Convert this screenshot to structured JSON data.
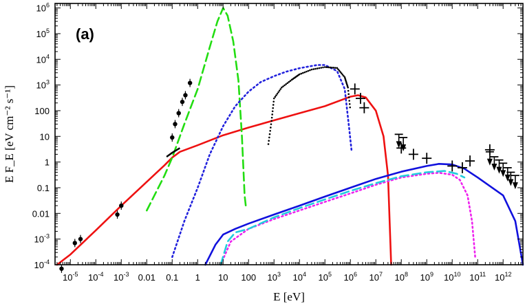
{
  "chart_data": {
    "type": "line",
    "title": "",
    "panel_label": "(a)",
    "xlabel": "E [eV]",
    "ylabel": "E F_E [eV cm⁻² s⁻¹]",
    "xscale": "log",
    "yscale": "log",
    "xlim": [
      2.5e-06,
      6000000000000.0
    ],
    "ylim": [
      0.0001,
      1500000.0
    ],
    "x_ticks": [
      {
        "v": 1e-05,
        "b": "10",
        "e": "-5"
      },
      {
        "v": 0.0001,
        "b": "10",
        "e": "-4"
      },
      {
        "v": 0.001,
        "b": "10",
        "e": "-3"
      },
      {
        "v": 0.01,
        "b": "0.01",
        "e": ""
      },
      {
        "v": 0.1,
        "b": "0.1",
        "e": ""
      },
      {
        "v": 1,
        "b": "1",
        "e": ""
      },
      {
        "v": 10,
        "b": "10",
        "e": ""
      },
      {
        "v": 100,
        "b": "100",
        "e": ""
      },
      {
        "v": 1000.0,
        "b": "10",
        "e": "3"
      },
      {
        "v": 10000.0,
        "b": "10",
        "e": "4"
      },
      {
        "v": 100000.0,
        "b": "10",
        "e": "5"
      },
      {
        "v": 1000000.0,
        "b": "10",
        "e": "6"
      },
      {
        "v": 10000000.0,
        "b": "10",
        "e": "7"
      },
      {
        "v": 100000000.0,
        "b": "10",
        "e": "8"
      },
      {
        "v": 1000000000.0,
        "b": "10",
        "e": "9"
      },
      {
        "v": 10000000000.0,
        "b": "10",
        "e": "10"
      },
      {
        "v": 100000000000.0,
        "b": "10",
        "e": "11"
      },
      {
        "v": 1000000000000.0,
        "b": "10",
        "e": "12"
      }
    ],
    "y_ticks": [
      {
        "v": 0.0001,
        "b": "10",
        "e": "-4"
      },
      {
        "v": 0.001,
        "b": "10",
        "e": "-3"
      },
      {
        "v": 0.01,
        "b": "0.01",
        "e": ""
      },
      {
        "v": 0.1,
        "b": "0.1",
        "e": ""
      },
      {
        "v": 1,
        "b": "1",
        "e": ""
      },
      {
        "v": 10,
        "b": "10",
        "e": ""
      },
      {
        "v": 100,
        "b": "100",
        "e": ""
      },
      {
        "v": 1000.0,
        "b": "10",
        "e": "3"
      },
      {
        "v": 10000.0,
        "b": "10",
        "e": "4"
      },
      {
        "v": 100000.0,
        "b": "10",
        "e": "5"
      },
      {
        "v": 1000000.0,
        "b": "10",
        "e": "6"
      }
    ],
    "series": [
      {
        "key": "red-solid",
        "color": "#ee1111",
        "style": "solid",
        "points": [
          [
            3e-06,
            6e-05
          ],
          [
            1e-05,
            0.00025
          ],
          [
            0.0001,
            0.0022
          ],
          [
            0.001,
            0.02
          ],
          [
            0.01,
            0.17
          ],
          [
            0.05,
            0.75
          ],
          [
            0.1,
            1.5
          ],
          [
            0.2,
            2.5
          ],
          [
            1,
            4.5
          ],
          [
            10,
            11
          ],
          [
            100,
            22
          ],
          [
            1000.0,
            42
          ],
          [
            10000.0,
            80
          ],
          [
            100000.0,
            150
          ],
          [
            1000000.0,
            350
          ],
          [
            2000000.0,
            400
          ],
          [
            4000000.0,
            330
          ],
          [
            10000000.0,
            100
          ],
          [
            20000000.0,
            10
          ],
          [
            30000000.0,
            0.3
          ],
          [
            40000000.0,
            0.0001
          ]
        ]
      },
      {
        "key": "green-dashed",
        "color": "#22dd11",
        "style": "dashed",
        "points": [
          [
            0.01,
            0.013
          ],
          [
            0.05,
            0.3
          ],
          [
            0.1,
            1.5
          ],
          [
            0.3,
            30
          ],
          [
            1,
            700
          ],
          [
            3,
            30000.0
          ],
          [
            6,
            300000.0
          ],
          [
            10,
            1000000.0
          ],
          [
            15,
            500000.0
          ],
          [
            25,
            50000.0
          ],
          [
            40,
            1500
          ],
          [
            55,
            10
          ],
          [
            70,
            0.05
          ],
          [
            80,
            0.015
          ]
        ]
      },
      {
        "key": "blue-dotted",
        "color": "#2222dd",
        "style": "dotted",
        "points": [
          [
            0.1,
            0.0002
          ],
          [
            0.3,
            0.005
          ],
          [
            1,
            0.1
          ],
          [
            3,
            2
          ],
          [
            10,
            25
          ],
          [
            30,
            150
          ],
          [
            100,
            550
          ],
          [
            300,
            1300
          ],
          [
            1000.0,
            2200
          ],
          [
            3000.0,
            3300
          ],
          [
            10000.0,
            4500
          ],
          [
            50000.0,
            6000
          ],
          [
            100000.0,
            6000
          ],
          [
            300000.0,
            3500
          ],
          [
            600000.0,
            700
          ],
          [
            900000.0,
            20
          ],
          [
            1100000.0,
            3
          ]
        ]
      },
      {
        "key": "blue-solid",
        "color": "#1111dd",
        "style": "solid",
        "points": [
          [
            2,
            0.0001
          ],
          [
            5,
            0.0006
          ],
          [
            10,
            0.0015
          ],
          [
            30,
            0.0025
          ],
          [
            100,
            0.004
          ],
          [
            1000.0,
            0.009
          ],
          [
            10000.0,
            0.02
          ],
          [
            100000.0,
            0.045
          ],
          [
            1000000.0,
            0.1
          ],
          [
            10000000.0,
            0.22
          ],
          [
            100000000.0,
            0.42
          ],
          [
            1000000000.0,
            0.7
          ],
          [
            3000000000.0,
            0.85
          ],
          [
            10000000000.0,
            0.8
          ],
          [
            30000000000.0,
            0.55
          ],
          [
            100000000000.0,
            0.25
          ],
          [
            1000000000000.0,
            0.05
          ],
          [
            3000000000000.0,
            0.005
          ],
          [
            6000000000000.0,
            0.0001
          ]
        ]
      },
      {
        "key": "magenta-dotted",
        "color": "#ee22ee",
        "style": "dotted",
        "points": [
          [
            8,
            0.0001
          ],
          [
            20,
            0.0008
          ],
          [
            100,
            0.0025
          ],
          [
            1000.0,
            0.006
          ],
          [
            10000.0,
            0.013
          ],
          [
            100000.0,
            0.028
          ],
          [
            1000000.0,
            0.06
          ],
          [
            10000000.0,
            0.13
          ],
          [
            100000000.0,
            0.25
          ],
          [
            1000000000.0,
            0.35
          ],
          [
            3000000000.0,
            0.38
          ],
          [
            10000000000.0,
            0.32
          ],
          [
            20000000000.0,
            0.2
          ],
          [
            40000000000.0,
            0.05
          ],
          [
            60000000000.0,
            0.005
          ],
          [
            80000000000.0,
            0.0002
          ]
        ]
      },
      {
        "key": "cyan-dashed",
        "color": "#22ccdd",
        "style": "dashed",
        "points": [
          [
            8,
            0.0001
          ],
          [
            15,
            0.0008
          ],
          [
            30,
            0.0018
          ],
          [
            100,
            0.0025
          ],
          [
            1000.0,
            0.007
          ],
          [
            10000.0,
            0.016
          ],
          [
            100000.0,
            0.035
          ],
          [
            1000000.0,
            0.075
          ],
          [
            10000000.0,
            0.15
          ],
          [
            100000000.0,
            0.28
          ],
          [
            1000000000.0,
            0.4
          ],
          [
            5000000000.0,
            0.45
          ],
          [
            15000000000.0,
            0.35
          ],
          [
            30000000000.0,
            0.25
          ]
        ]
      }
    ],
    "markers": [
      {
        "x": 4.5e-06,
        "y": 7e-05
      },
      {
        "x": 1.5e-05,
        "y": 0.0007
      },
      {
        "x": 2.5e-05,
        "y": 0.001
      },
      {
        "x": 0.0007,
        "y": 0.009
      },
      {
        "x": 0.001,
        "y": 0.02
      },
      {
        "x": 0.1,
        "y": 9
      },
      {
        "x": 0.13,
        "y": 30
      },
      {
        "x": 0.18,
        "y": 80
      },
      {
        "x": 0.25,
        "y": 220
      },
      {
        "x": 0.33,
        "y": 400
      },
      {
        "x": 0.5,
        "y": 1200
      }
    ],
    "optical_segment": [
      [
        0.06,
        1.6
      ],
      [
        0.1,
        2.3
      ],
      [
        0.2,
        3.5
      ]
    ],
    "xray_spectrum": [
      [
        600,
        5
      ],
      [
        800,
        40
      ],
      [
        1000.0,
        300
      ],
      [
        2000.0,
        800
      ],
      [
        5000.0,
        1600
      ],
      [
        10000.0,
        2600
      ],
      [
        30000.0,
        4000
      ],
      [
        100000.0,
        5000
      ],
      [
        300000.0,
        4600
      ],
      [
        600000.0,
        2000
      ],
      [
        800000.0,
        800
      ],
      [
        1000000.0,
        100
      ]
    ],
    "crosses": [
      {
        "x": 1500000.0,
        "y": 700
      },
      {
        "x": 2500000.0,
        "y": 300
      },
      {
        "x": 3500000.0,
        "y": 130
      },
      {
        "x": 100000000.0,
        "y": 3.5
      },
      {
        "x": 300000000.0,
        "y": 2
      },
      {
        "x": 1000000000.0,
        "y": 1.4
      },
      {
        "x": 10000000000.0,
        "y": 0.7
      },
      {
        "x": 25000000000.0,
        "y": 0.6
      },
      {
        "x": 50000000000.0,
        "y": 1.1
      },
      {
        "x": 300000000000.0,
        "y": 3
      }
    ],
    "upper_limits": [
      {
        "x": 80000000.0,
        "y": 12
      },
      {
        "x": 120000000.0,
        "y": 9
      },
      {
        "x": 300000000000.0,
        "y": 2.5
      },
      {
        "x": 450000000000.0,
        "y": 1.6
      },
      {
        "x": 700000000000.0,
        "y": 1.2
      },
      {
        "x": 1000000000000.0,
        "y": 0.9
      },
      {
        "x": 1500000000000.0,
        "y": 0.6
      },
      {
        "x": 2000000000000.0,
        "y": 0.4
      },
      {
        "x": 3000000000000.0,
        "y": 0.3
      }
    ]
  }
}
